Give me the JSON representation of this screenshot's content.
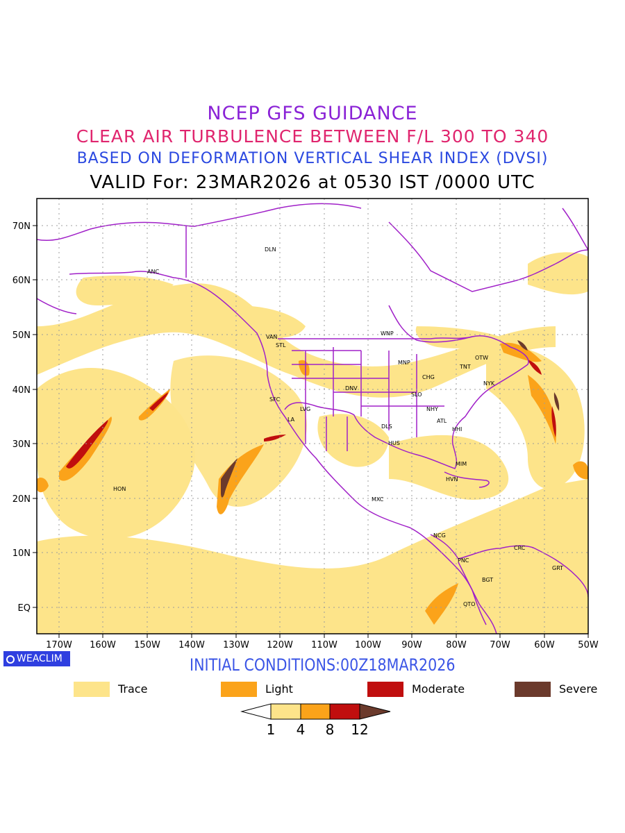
{
  "titles": {
    "line1": "NCEP GFS GUIDANCE",
    "line2": "CLEAR AIR TURBULENCE BETWEEN F/L 300 TO 340",
    "line3": "BASED ON DEFORMATION VERTICAL SHEAR INDEX (DVSI)",
    "line4": "VALID For: 23MAR2026 at 0530 IST /0000 UTC"
  },
  "map": {
    "lon_range": [
      -175,
      -50
    ],
    "lat_range": [
      -5,
      75
    ],
    "lat_ticks": [
      "70N",
      "60N",
      "50N",
      "40N",
      "30N",
      "20N",
      "10N",
      "EQ"
    ],
    "lon_ticks": [
      "170W",
      "160W",
      "150W",
      "140W",
      "130W",
      "120W",
      "110W",
      "100W",
      "90W",
      "80W",
      "70W",
      "60W",
      "50W"
    ],
    "boundary_color": "#a020c8",
    "stations": [
      "ANC",
      "DLN",
      "VAN",
      "STL",
      "WNP",
      "MNP",
      "TNT",
      "OTW",
      "CHG",
      "NYK",
      "DNV",
      "SLO",
      "SFC",
      "LVG",
      "LA",
      "NHY",
      "ATL",
      "DLS",
      "HHI",
      "HUS",
      "MIM",
      "HVN",
      "HON",
      "MXC",
      "NCG",
      "CRC",
      "PNC",
      "GRT",
      "BGT",
      "QTO"
    ]
  },
  "badge": "WEACLIM",
  "initial_conditions": "INITIAL CONDITIONS:00Z18MAR2026",
  "legend": [
    {
      "label": "Trace",
      "color": "#fde48a"
    },
    {
      "label": "Light",
      "color": "#fba31a"
    },
    {
      "label": "Moderate",
      "color": "#c00e0e"
    },
    {
      "label": "Severe",
      "color": "#6b3a2c"
    }
  ],
  "colorbar": {
    "ticks": [
      "1",
      "4",
      "8",
      "12"
    ],
    "colors": [
      "#ffffff",
      "#fde48a",
      "#fba31a",
      "#c00e0e",
      "#6b3a2c"
    ]
  }
}
